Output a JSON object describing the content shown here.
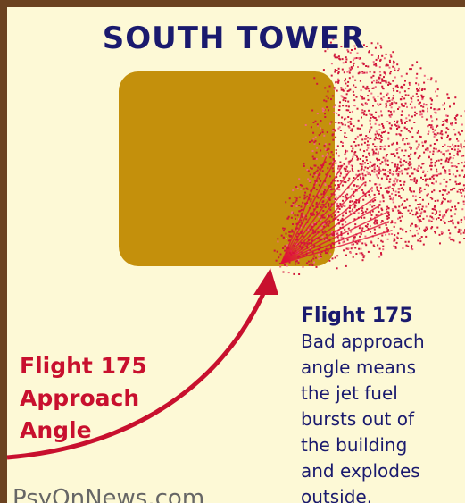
{
  "title": "SOUTH TOWER",
  "approach_label": {
    "lines": [
      "Flight 175",
      "Approach",
      "Angle"
    ]
  },
  "note": {
    "heading": "Flight 175",
    "lines": [
      "Bad approach",
      "angle means",
      "the jet fuel",
      "bursts out of",
      "the building",
      "and explodes",
      "outside."
    ]
  },
  "footer": "PsyOnNews.com"
}
